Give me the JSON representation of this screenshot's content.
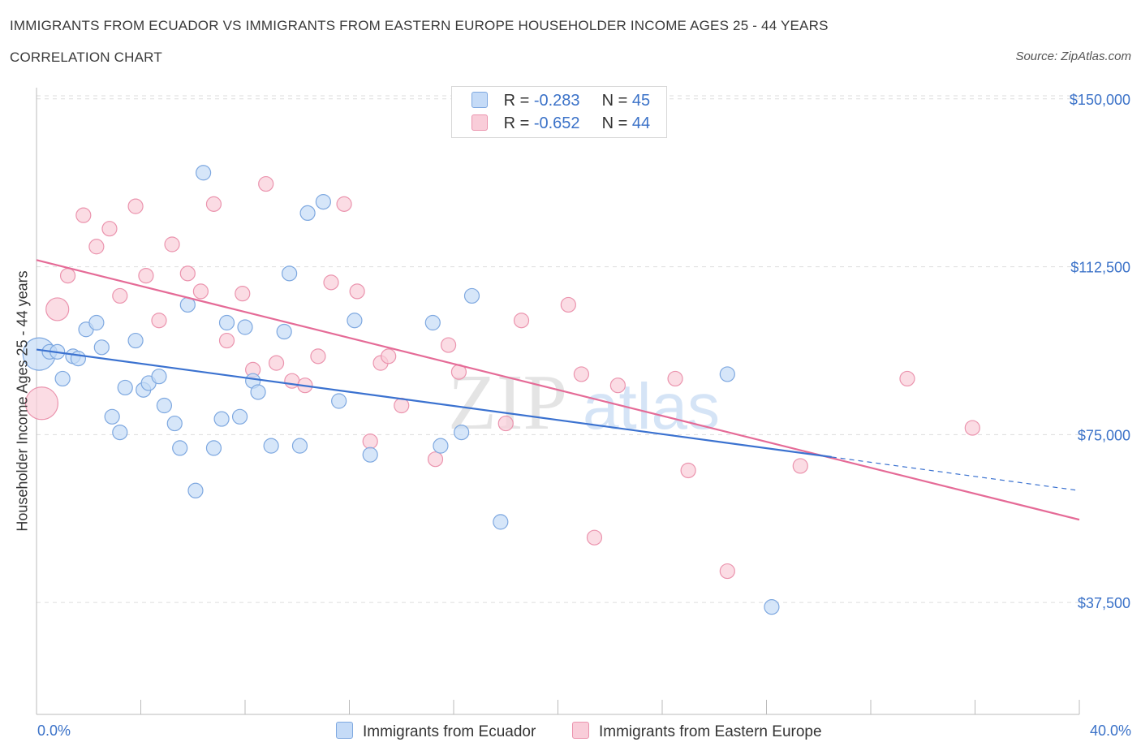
{
  "header": {
    "title": "IMMIGRANTS FROM ECUADOR VS IMMIGRANTS FROM EASTERN EUROPE HOUSEHOLDER INCOME AGES 25 - 44 YEARS",
    "subtitle": "CORRELATION CHART",
    "source": "Source: ZipAtlas.com"
  },
  "legend_top": {
    "rows": [
      {
        "r_label": "R =",
        "r_value": "-0.283",
        "n_label": "N =",
        "n_value": "45"
      },
      {
        "r_label": "R =",
        "r_value": "-0.652",
        "n_label": "N =",
        "n_value": "44"
      }
    ]
  },
  "legend_bottom": {
    "series_a": "Immigrants from Ecuador",
    "series_b": "Immigrants from Eastern Europe"
  },
  "watermark": {
    "zip": "ZIP",
    "atlas": "atlas"
  },
  "colors": {
    "ecuador_fill": "#c5dbf7",
    "ecuador_stroke": "#7ea8e0",
    "ecuador_line": "#3b72d0",
    "europe_fill": "#f9cdd9",
    "europe_stroke": "#eb94ae",
    "europe_line": "#e56b97",
    "tick_text": "#3b72c8",
    "grid": "#dddddd"
  },
  "chart_data": {
    "type": "scatter",
    "title": "IMMIGRANTS FROM ECUADOR VS IMMIGRANTS FROM EASTERN EUROPE HOUSEHOLDER INCOME AGES 25 - 44 YEARS",
    "xlabel": "",
    "ylabel": "Householder Income Ages 25 - 44 years",
    "xlim": [
      0,
      40
    ],
    "ylim": [
      12500,
      152500
    ],
    "x_tick_labels": [
      "0.0%",
      "40.0%"
    ],
    "y_ticks": [
      150000,
      112500,
      75000,
      37500
    ],
    "y_tick_labels": [
      "$150,000",
      "$112,500",
      "$75,000",
      "$37,500"
    ],
    "grid": true,
    "legend_position": "top-center",
    "series": [
      {
        "name": "Immigrants from Ecuador",
        "r": -0.283,
        "n": 45,
        "trend": {
          "x0": 0,
          "y0": 94000,
          "x1": 30.5,
          "y1": 70000,
          "dash_to_x": 40,
          "dash_to_y": 62500
        },
        "points": [
          {
            "x": 0.1,
            "y": 93000,
            "size": "large"
          },
          {
            "x": 0.5,
            "y": 93500
          },
          {
            "x": 0.8,
            "y": 93500
          },
          {
            "x": 1.0,
            "y": 87500
          },
          {
            "x": 1.4,
            "y": 92500
          },
          {
            "x": 1.6,
            "y": 92000
          },
          {
            "x": 1.9,
            "y": 98500
          },
          {
            "x": 2.3,
            "y": 100000
          },
          {
            "x": 2.5,
            "y": 94500
          },
          {
            "x": 2.9,
            "y": 79000
          },
          {
            "x": 3.2,
            "y": 75500
          },
          {
            "x": 3.4,
            "y": 85500
          },
          {
            "x": 3.8,
            "y": 96000
          },
          {
            "x": 4.1,
            "y": 85000
          },
          {
            "x": 4.3,
            "y": 86500
          },
          {
            "x": 4.7,
            "y": 88000
          },
          {
            "x": 4.9,
            "y": 81500
          },
          {
            "x": 5.3,
            "y": 77500
          },
          {
            "x": 5.5,
            "y": 72000
          },
          {
            "x": 5.8,
            "y": 104000
          },
          {
            "x": 6.1,
            "y": 62500
          },
          {
            "x": 6.4,
            "y": 133500
          },
          {
            "x": 6.8,
            "y": 72000
          },
          {
            "x": 7.1,
            "y": 78500
          },
          {
            "x": 7.3,
            "y": 100000
          },
          {
            "x": 7.8,
            "y": 79000
          },
          {
            "x": 8.0,
            "y": 99000
          },
          {
            "x": 8.3,
            "y": 87000
          },
          {
            "x": 8.5,
            "y": 84500
          },
          {
            "x": 9.0,
            "y": 72500
          },
          {
            "x": 9.5,
            "y": 98000
          },
          {
            "x": 9.7,
            "y": 111000
          },
          {
            "x": 10.1,
            "y": 72500
          },
          {
            "x": 10.4,
            "y": 124500
          },
          {
            "x": 11.0,
            "y": 127000
          },
          {
            "x": 11.6,
            "y": 82500
          },
          {
            "x": 12.2,
            "y": 100500
          },
          {
            "x": 12.8,
            "y": 70500
          },
          {
            "x": 15.2,
            "y": 100000
          },
          {
            "x": 15.5,
            "y": 72500
          },
          {
            "x": 16.3,
            "y": 75500
          },
          {
            "x": 16.7,
            "y": 106000
          },
          {
            "x": 17.8,
            "y": 55500
          },
          {
            "x": 26.5,
            "y": 88500
          },
          {
            "x": 28.2,
            "y": 36500
          }
        ]
      },
      {
        "name": "Immigrants from Eastern Europe",
        "r": -0.652,
        "n": 44,
        "trend": {
          "x0": 0,
          "y0": 114000,
          "x1": 40,
          "y1": 56000
        },
        "points": [
          {
            "x": 0.2,
            "y": 82000,
            "size": "large"
          },
          {
            "x": 0.8,
            "y": 103000,
            "size": "medium"
          },
          {
            "x": 1.2,
            "y": 110500
          },
          {
            "x": 1.8,
            "y": 124000
          },
          {
            "x": 2.3,
            "y": 117000
          },
          {
            "x": 2.8,
            "y": 121000
          },
          {
            "x": 3.2,
            "y": 106000
          },
          {
            "x": 3.8,
            "y": 126000
          },
          {
            "x": 4.2,
            "y": 110500
          },
          {
            "x": 4.7,
            "y": 100500
          },
          {
            "x": 5.2,
            "y": 117500
          },
          {
            "x": 5.8,
            "y": 111000
          },
          {
            "x": 6.3,
            "y": 107000
          },
          {
            "x": 6.8,
            "y": 126500
          },
          {
            "x": 7.3,
            "y": 96000
          },
          {
            "x": 7.9,
            "y": 106500
          },
          {
            "x": 8.3,
            "y": 89500
          },
          {
            "x": 8.8,
            "y": 131000
          },
          {
            "x": 9.2,
            "y": 91000
          },
          {
            "x": 9.8,
            "y": 87000
          },
          {
            "x": 10.3,
            "y": 86000
          },
          {
            "x": 10.8,
            "y": 92500
          },
          {
            "x": 11.3,
            "y": 109000
          },
          {
            "x": 11.8,
            "y": 126500
          },
          {
            "x": 12.3,
            "y": 107000
          },
          {
            "x": 12.8,
            "y": 73500
          },
          {
            "x": 13.2,
            "y": 91000
          },
          {
            "x": 13.5,
            "y": 92500
          },
          {
            "x": 14.0,
            "y": 81500
          },
          {
            "x": 15.3,
            "y": 69500
          },
          {
            "x": 15.8,
            "y": 95000
          },
          {
            "x": 16.2,
            "y": 89000
          },
          {
            "x": 18.0,
            "y": 77500
          },
          {
            "x": 18.6,
            "y": 100500
          },
          {
            "x": 20.4,
            "y": 104000
          },
          {
            "x": 20.9,
            "y": 88500
          },
          {
            "x": 21.4,
            "y": 52000
          },
          {
            "x": 22.3,
            "y": 86000
          },
          {
            "x": 24.5,
            "y": 87500
          },
          {
            "x": 25.0,
            "y": 67000
          },
          {
            "x": 26.5,
            "y": 44500
          },
          {
            "x": 29.3,
            "y": 68000
          },
          {
            "x": 33.4,
            "y": 87500
          },
          {
            "x": 35.9,
            "y": 76500
          }
        ]
      }
    ]
  }
}
